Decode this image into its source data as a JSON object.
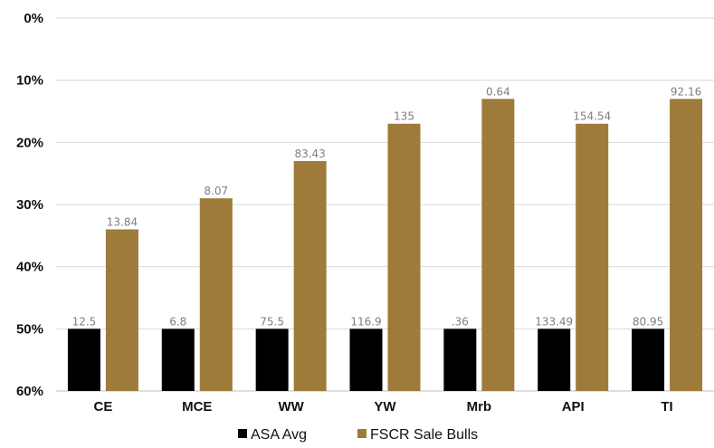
{
  "chart_data": {
    "type": "bar",
    "title": "",
    "xlabel": "",
    "ylabel": "",
    "y_axis": {
      "ticks": [
        "0%",
        "10%",
        "20%",
        "30%",
        "40%",
        "50%",
        "60%"
      ],
      "range": [
        0,
        60
      ],
      "inverted": true,
      "grid": true
    },
    "categories": [
      "CE",
      "MCE",
      "WW",
      "YW",
      "Mrb",
      "API",
      "TI"
    ],
    "series": [
      {
        "name": "ASA Avg",
        "color": "#000000",
        "values": [
          50,
          50,
          50,
          50,
          50,
          50,
          50
        ],
        "labels": [
          "12.5",
          "6.8",
          "75.5",
          "116.9",
          ".36",
          "133.49",
          "80.95"
        ]
      },
      {
        "name": "FSCR Sale Bulls",
        "color": "#9e7b3a",
        "values": [
          34,
          29,
          23,
          17,
          13,
          17,
          13
        ],
        "labels": [
          "13.84",
          "8.07",
          "83.43",
          "135",
          "0.64",
          "154.54",
          "92.16"
        ]
      }
    ],
    "legend": {
      "position": "bottom"
    }
  }
}
